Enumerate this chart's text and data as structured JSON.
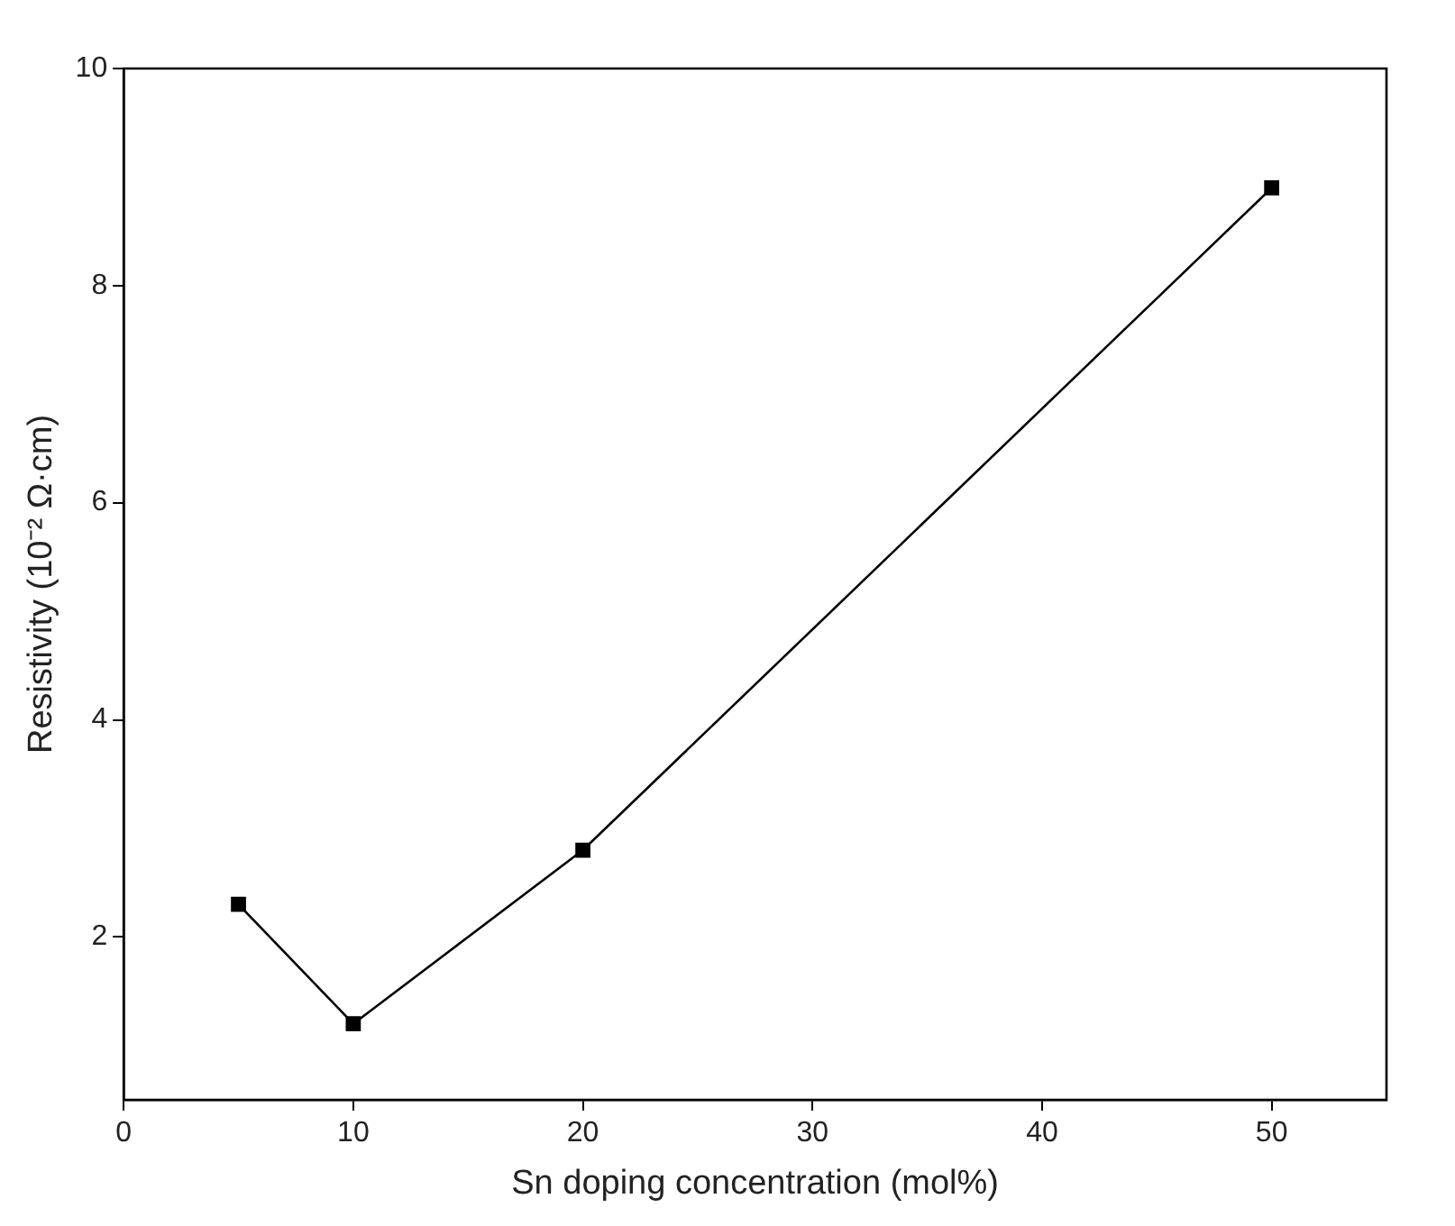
{
  "chart_data": {
    "type": "line",
    "xlabel": "Sn doping concentration (mol%)",
    "ylabel": "Resistivity (10⁻² Ω·cm)",
    "x": [
      5,
      10,
      20,
      50
    ],
    "series": [
      {
        "color": "#000000",
        "values": [
          2.3,
          1.2,
          2.8,
          8.9
        ]
      }
    ],
    "xlim": [
      0,
      55
    ],
    "xticks": [
      0,
      10,
      20,
      30,
      40,
      50
    ],
    "ylim": [
      0.5,
      10
    ],
    "yticks": [
      2,
      4,
      6,
      8,
      10
    ],
    "grid": false,
    "legend": false,
    "marker": "square",
    "line_style": "solid"
  }
}
